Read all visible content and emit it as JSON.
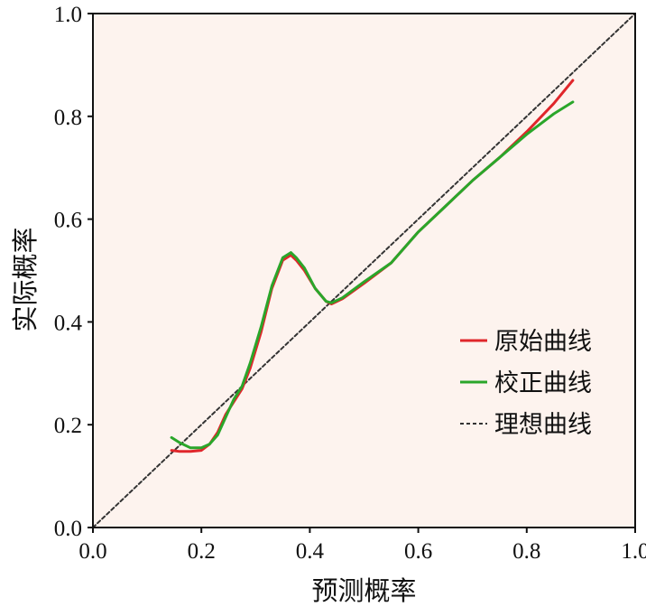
{
  "chart_data": {
    "type": "line",
    "title": "",
    "xlabel": "预测概率",
    "ylabel": "实际概率",
    "xlim": [
      0,
      1
    ],
    "ylim": [
      0,
      1
    ],
    "xticks": [
      "0.0",
      "0.2",
      "0.4",
      "0.6",
      "0.8",
      "1.0"
    ],
    "yticks": [
      "0.0",
      "0.2",
      "0.4",
      "0.6",
      "0.8",
      "1.0"
    ],
    "legend_position": "right",
    "grid": false,
    "plot_background": "#fdf3ee",
    "series": [
      {
        "name": "原始曲线",
        "color": "#e0262b",
        "x": [
          0.145,
          0.16,
          0.18,
          0.2,
          0.215,
          0.23,
          0.245,
          0.26,
          0.275,
          0.29,
          0.31,
          0.33,
          0.35,
          0.365,
          0.375,
          0.39,
          0.41,
          0.43,
          0.44,
          0.46,
          0.5,
          0.55,
          0.6,
          0.65,
          0.7,
          0.75,
          0.8,
          0.85,
          0.885
        ],
        "y": [
          0.15,
          0.148,
          0.148,
          0.15,
          0.162,
          0.185,
          0.22,
          0.245,
          0.27,
          0.31,
          0.38,
          0.465,
          0.52,
          0.53,
          0.52,
          0.5,
          0.465,
          0.44,
          0.435,
          0.445,
          0.475,
          0.515,
          0.575,
          0.625,
          0.675,
          0.72,
          0.77,
          0.825,
          0.87
        ]
      },
      {
        "name": "校正曲线",
        "color": "#2aa62a",
        "x": [
          0.145,
          0.16,
          0.18,
          0.2,
          0.215,
          0.23,
          0.245,
          0.26,
          0.275,
          0.29,
          0.31,
          0.33,
          0.35,
          0.365,
          0.375,
          0.39,
          0.41,
          0.43,
          0.44,
          0.46,
          0.5,
          0.55,
          0.6,
          0.65,
          0.7,
          0.75,
          0.8,
          0.85,
          0.885
        ],
        "y": [
          0.175,
          0.165,
          0.155,
          0.155,
          0.162,
          0.18,
          0.215,
          0.25,
          0.275,
          0.32,
          0.39,
          0.47,
          0.525,
          0.535,
          0.525,
          0.505,
          0.465,
          0.44,
          0.437,
          0.447,
          0.478,
          0.515,
          0.575,
          0.625,
          0.675,
          0.72,
          0.765,
          0.805,
          0.828
        ]
      },
      {
        "name": "理想曲线",
        "color": "#333333",
        "dashed": true,
        "x": [
          0,
          1
        ],
        "y": [
          0,
          1
        ]
      }
    ]
  }
}
